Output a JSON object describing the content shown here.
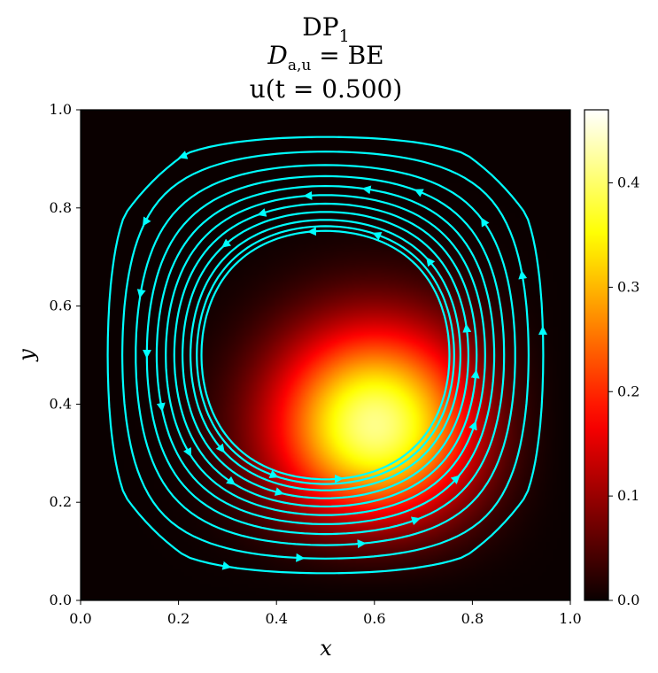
{
  "chart_data": {
    "type": "heatmap",
    "title_lines": [
      "DP1",
      "D_{a,u} = BE",
      "u(t = 0.500)"
    ],
    "title_parts": {
      "line1_main": "DP",
      "line1_sub": "1",
      "line2_main": "D",
      "line2_sub": "a,u",
      "line2_rest": " = BE",
      "line3": "u(t = 0.500)"
    },
    "xlabel": "x",
    "ylabel": "y",
    "xlim": [
      0.0,
      1.0
    ],
    "ylim": [
      0.0,
      1.0
    ],
    "xticks": [
      "0.0",
      "0.2",
      "0.4",
      "0.6",
      "0.8",
      "1.0"
    ],
    "yticks": [
      "0.0",
      "0.2",
      "0.4",
      "0.6",
      "0.8",
      "1.0"
    ],
    "colorbar": {
      "colormap": "hot",
      "range": [
        0.0,
        0.47
      ],
      "ticks": [
        "0.0",
        "0.1",
        "0.2",
        "0.3",
        "0.4"
      ]
    },
    "field_peak": {
      "x": 0.63,
      "y": 0.32,
      "value": 0.47
    },
    "streamlines": {
      "color": "#00ffff",
      "vortex_center": {
        "x": 0.5,
        "y": 0.5
      },
      "rotation": "counterclockwise",
      "levels": [
        0.03,
        0.07,
        0.12,
        0.17,
        0.22,
        0.27,
        0.32,
        0.37,
        0.42,
        0.46,
        0.49
      ]
    },
    "grid": false
  }
}
